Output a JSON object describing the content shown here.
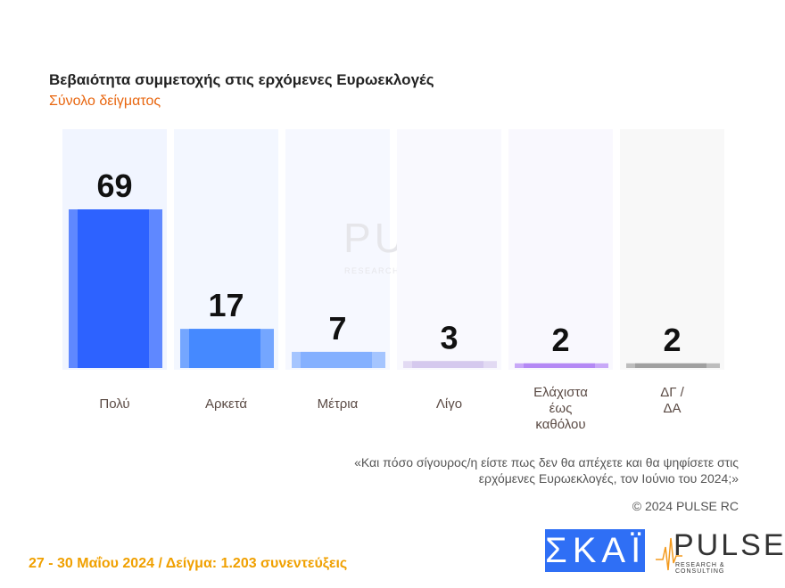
{
  "title": "Βεβαιότητα συμμετοχής στις ερχόμενες Ευρωεκλογές",
  "subtitle": "Σύνολο δείγματος",
  "chart_data": {
    "type": "bar",
    "categories": [
      "Πολύ",
      "Αρκετά",
      "Μέτρια",
      "Λίγο",
      "Ελάχιστα\nέως\nκαθόλου",
      "ΔΓ /\nΔΑ"
    ],
    "values": [
      69,
      17,
      7,
      3,
      2,
      2
    ],
    "colors": [
      "#2d62ff",
      "#4589ff",
      "#84b0ff",
      "#d5c9ee",
      "#b488f5",
      "#a0a0a0"
    ],
    "edge_colors": [
      "#5f88ff",
      "#74a6ff",
      "#a5c5ff",
      "#e2daf3",
      "#c8a8f8",
      "#bdbdbd"
    ],
    "column_bg": [
      "#f1f5ff",
      "#f3f7ff",
      "#f6f8ff",
      "#f9f9fe",
      "#f9f8fe",
      "#f8f8f8"
    ],
    "ylim": [
      0,
      75
    ],
    "grid": false
  },
  "watermark": {
    "word": "PULSE",
    "sub": "RESEARCH & CONSULTING"
  },
  "note": "«Και πόσο σίγουρος/η είστε πως δεν θα απέχετε και θα ψηφίσετε στις ερχόμενες Ευρωεκλογές, τον Ιούνιο του 2024;»",
  "copyright": "© 2024 PULSE RC",
  "footer": "27 - 30  Μαΐου 2024  /  Δείγμα:  1.203 συνεντεύξεις",
  "logos": {
    "skai": "ΣΚΑΪ",
    "pulse": "PULSE",
    "pulse_sub": "RESEARCH & CONSULTING"
  }
}
